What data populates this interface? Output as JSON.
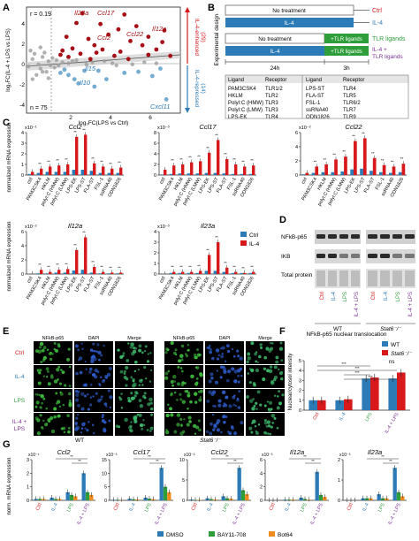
{
  "colors": {
    "red": "#d7191c",
    "darkred": "#a50f15",
    "blue": "#2c7bb6",
    "lightblue": "#74add1",
    "grey": "#9e9e9e",
    "green": "#2e9e3a",
    "orange": "#f08a1f",
    "purple": "#7b3294"
  },
  "panel_letters": [
    "A",
    "B",
    "C",
    "D",
    "E",
    "F",
    "G"
  ],
  "panelA": {
    "r_label": "r = 0.19",
    "n_label": "n = 75",
    "xlabel": "log₂FC(LPS vs Ctrl)",
    "ylabel": "log₂FC(IL-4 + LPS vs LPS)",
    "enhanced_label": "IL-4-enhanced",
    "enhanced_count": "(29)",
    "repressed_label": "IL-4-repressed",
    "repressed_count": "(14)",
    "genes": {
      "il23a": "Il23a",
      "ccl17": "Ccl17",
      "ccl2": "Ccl2",
      "ccl22": "Ccl22",
      "il12a": "Il12a",
      "il15": "Il15",
      "il10": "Il10",
      "cxcl11": "Cxcl11"
    },
    "xticks": [
      "2",
      "4",
      "6"
    ],
    "yticks": [
      "4",
      "2",
      "0",
      "-2",
      "-4"
    ],
    "chart_data": {
      "type": "scatter",
      "xlabel": "log₂FC(LPS vs Ctrl)",
      "ylabel": "log₂FC(IL-4 + LPS vs LPS)",
      "xlim": [
        -0.5,
        7.2
      ],
      "ylim": [
        -4.8,
        5.2
      ],
      "enhanced": [
        [
          2.3,
          4.6
        ],
        [
          4.4,
          4.5
        ],
        [
          2.0,
          3.7
        ],
        [
          3.2,
          3.6
        ],
        [
          4.1,
          3.1
        ],
        [
          5.0,
          3.4
        ],
        [
          6.4,
          3.0
        ],
        [
          3.6,
          2.6
        ],
        [
          5.6,
          2.4
        ],
        [
          2.6,
          2.2
        ],
        [
          1.5,
          2.4
        ],
        [
          4.7,
          2.0
        ],
        [
          2.9,
          1.6
        ],
        [
          5.3,
          1.6
        ],
        [
          1.8,
          1.3
        ],
        [
          3.3,
          1.2
        ],
        [
          4.2,
          1.0
        ],
        [
          6.0,
          1.2
        ],
        [
          2.2,
          0.8
        ],
        [
          1.2,
          0.7
        ],
        [
          5.6,
          0.7
        ],
        [
          3.9,
          0.6
        ],
        [
          1.6,
          0.5
        ],
        [
          2.7,
          0.3
        ],
        [
          4.6,
          0.3
        ],
        [
          6.7,
          0.6
        ],
        [
          6.3,
          1.9
        ],
        [
          1.3,
          1.1
        ],
        [
          3.0,
          0.9
        ]
      ],
      "repressed": [
        [
          2.4,
          -0.8
        ],
        [
          1.6,
          -1.2
        ],
        [
          3.5,
          -1.6
        ],
        [
          2.1,
          -2.0
        ],
        [
          4.4,
          -1.0
        ],
        [
          5.8,
          -1.3
        ],
        [
          1.4,
          -0.7
        ],
        [
          2.9,
          -2.3
        ],
        [
          5.1,
          -0.9
        ],
        [
          1.9,
          -1.6
        ],
        [
          3.1,
          -0.8
        ],
        [
          6.2,
          -0.6
        ],
        [
          1.2,
          -1.0
        ],
        [
          6.5,
          -3.5
        ]
      ],
      "neutral": [
        [
          -0.2,
          0.3
        ],
        [
          0.1,
          -0.2
        ],
        [
          0.3,
          0.5
        ],
        [
          -0.4,
          -0.4
        ],
        [
          0.6,
          0.1
        ],
        [
          0.2,
          -0.6
        ],
        [
          -0.1,
          0.8
        ],
        [
          0.5,
          -0.9
        ],
        [
          0.8,
          0.4
        ],
        [
          0.0,
          -1.2
        ],
        [
          -0.3,
          1.1
        ],
        [
          0.4,
          0.9
        ],
        [
          0.7,
          -0.3
        ],
        [
          1.0,
          0.2
        ],
        [
          0.9,
          -0.5
        ],
        [
          1.3,
          0.0
        ],
        [
          1.6,
          -0.1
        ],
        [
          2.0,
          0.2
        ],
        [
          2.5,
          -0.2
        ],
        [
          3.4,
          0.1
        ],
        [
          4.0,
          -0.3
        ],
        [
          4.8,
          -0.2
        ],
        [
          5.4,
          0.0
        ],
        [
          6.0,
          -0.1
        ],
        [
          0.2,
          1.4
        ],
        [
          -0.2,
          -1.6
        ],
        [
          0.6,
          -1.5
        ],
        [
          1.1,
          -0.3
        ],
        [
          1.8,
          0.1
        ],
        [
          2.8,
          0.0
        ],
        [
          3.8,
          -0.1
        ],
        [
          0.3,
          -0.9
        ]
      ]
    }
  },
  "panelB": {
    "title": "Experimental design",
    "no_treatment": "No treatment",
    "il4": "IL-4",
    "tlr_ligands": "+TLR ligands",
    "ctrl": "Ctrl",
    "out_il4": "IL-4",
    "out_tlr": "TLR ligands",
    "out_il4_tlr": "IL-4 +",
    "out_il4_tlr2": "TLR ligands",
    "t24": "24h",
    "t3": "3h",
    "table_header": [
      "Ligand",
      "Receptor",
      "Ligand",
      "Receptor"
    ],
    "table_rows": [
      [
        "PAM3CSK4",
        "TLR1/2",
        "LPS-ST",
        "TLR4"
      ],
      [
        "HKLM",
        "TLR2",
        "FLA-ST",
        "TLR5"
      ],
      [
        "PolyI:C (HMW)",
        "TLR3",
        "FSL-1",
        "TLR6/2"
      ],
      [
        "PolyI:C (LMW)",
        "TLR3",
        "ssRNA40",
        "TLR7"
      ],
      [
        "LPS-EK",
        "TLR4",
        "ODN1826",
        "TLR9"
      ]
    ]
  },
  "panelC": {
    "ylabel": "normalized mRNA expression",
    "legend_ctrl": "Ctrl",
    "legend_il4": "IL-4",
    "categories": [
      "ctrl",
      "PAM3CSK4",
      "HKLM",
      "polyI:C (HMW)",
      "polyI:C (LMW)",
      "LPS-EK",
      "LPS-ST",
      "FLA-ST",
      "FSL-1",
      "ssRNA40",
      "ODN1826"
    ],
    "charts": [
      {
        "gene": "Ccl2",
        "scale": "x10⁻¹",
        "ymax": "4",
        "ticks": [
          "0",
          "1",
          "2",
          "3",
          "4"
        ],
        "ctrl": [
          0.1,
          0.2,
          0.3,
          0.3,
          0.3,
          0.5,
          0.5,
          0.4,
          0.2,
          0.2,
          0.2
        ],
        "il4": [
          0.3,
          0.6,
          0.8,
          0.9,
          1.0,
          3.6,
          3.8,
          1.1,
          0.8,
          0.6,
          0.7
        ]
      },
      {
        "gene": "Ccl17",
        "scale": "x10⁻³",
        "ymax": "8",
        "ticks": [
          "0",
          "2",
          "4",
          "6",
          "8"
        ],
        "ctrl": [
          0.1,
          0.2,
          0.3,
          0.3,
          0.3,
          0.4,
          0.4,
          0.3,
          0.2,
          0.2,
          0.2
        ],
        "il4": [
          1.0,
          1.8,
          2.0,
          2.4,
          2.6,
          4.2,
          6.6,
          3.0,
          2.0,
          1.6,
          1.8
        ]
      },
      {
        "gene": "Ccl22",
        "scale": "x10⁻²",
        "ymax": "6",
        "ticks": [
          "0",
          "2",
          "4",
          "6"
        ],
        "ctrl": [
          0.1,
          0.3,
          0.4,
          0.4,
          0.5,
          0.8,
          0.9,
          0.6,
          0.4,
          0.3,
          0.4
        ],
        "il4": [
          0.3,
          1.2,
          1.5,
          2.2,
          2.6,
          4.8,
          5.2,
          2.4,
          1.4,
          1.2,
          1.6
        ]
      },
      {
        "gene": "Il12a",
        "scale": "x10⁻²",
        "ymax": "6",
        "ticks": [
          "0",
          "2",
          "4",
          "6"
        ],
        "ctrl": [
          0.0,
          0.1,
          0.1,
          0.2,
          0.2,
          0.5,
          0.6,
          0.2,
          0.1,
          0.1,
          0.1
        ],
        "il4": [
          0.0,
          0.6,
          0.3,
          0.6,
          0.7,
          3.4,
          5.2,
          1.0,
          0.3,
          0.2,
          0.2
        ]
      },
      {
        "gene": "Il23a",
        "scale": "x10⁻³",
        "ymax": "4",
        "ticks": [
          "0",
          "1",
          "2",
          "3",
          "4"
        ],
        "ctrl": [
          0.0,
          0.1,
          0.1,
          0.1,
          0.1,
          0.3,
          0.3,
          0.2,
          0.1,
          0.1,
          0.1
        ],
        "il4": [
          0.0,
          0.2,
          0.2,
          0.2,
          0.3,
          1.8,
          3.0,
          0.6,
          0.2,
          0.1,
          0.2
        ]
      }
    ]
  },
  "panelD": {
    "row_labels": [
      "NFkB-p65",
      "IKB",
      "Total protein"
    ],
    "lanes": [
      "Ctrl",
      "IL-4",
      "LPS",
      "IL-4 + LPS"
    ],
    "groups": [
      "WT",
      "Stat6⁻/⁻"
    ]
  },
  "panelE": {
    "col_labels": [
      "NFkB-p65",
      "DAPI",
      "Merge",
      "NFkB-p65",
      "DAPI",
      "Merge"
    ],
    "row_labels": [
      "Ctrl",
      "IL-4",
      "LPS",
      "IL-4 +",
      "LPS"
    ],
    "groups": [
      "WT",
      "Stat6⁻/⁻"
    ]
  },
  "panelF": {
    "title": "NFkB-p65 nuclear translocation",
    "ylabel": "Nuclear/cytosol intensity",
    "legend": [
      "WT",
      "Stat6⁻/⁻"
    ],
    "categories": [
      "Ctrl",
      "IL-4",
      "LPS",
      "IL-4 + LPS"
    ],
    "yticks": [
      "0",
      "1",
      "2",
      "3",
      "4",
      "5"
    ],
    "ns": "ns",
    "chart_data": {
      "type": "bar",
      "categories": [
        "Ctrl",
        "IL-4",
        "LPS",
        "IL-4 + LPS"
      ],
      "series": [
        {
          "name": "WT",
          "values": [
            1.0,
            1.0,
            3.2,
            3.2
          ]
        },
        {
          "name": "Stat6⁻/⁻",
          "values": [
            1.0,
            1.1,
            3.3,
            3.8
          ]
        }
      ],
      "ylim": [
        0,
        5
      ]
    }
  },
  "panelG": {
    "ylabel": "norm. mRNA expression",
    "categories": [
      "Ctrl",
      "IL-4",
      "LPS",
      "IL-4 + LPS"
    ],
    "legend": [
      "DMSO",
      "BAY11-708",
      "Bot64"
    ],
    "charts": [
      {
        "gene": "Ccl2",
        "scale": "x10⁻¹",
        "ticks": [
          "0",
          "1",
          "2",
          "3"
        ],
        "ymax": 3,
        "dmso": [
          0.1,
          0.2,
          0.6,
          2.0
        ],
        "bay": [
          0.1,
          0.1,
          0.4,
          0.6
        ],
        "bot": [
          0.1,
          0.1,
          0.3,
          0.4
        ]
      },
      {
        "gene": "Ccl17",
        "scale": "x10⁻³",
        "ticks": [
          "0",
          "5",
          "10",
          "15"
        ],
        "ymax": 15,
        "dmso": [
          0.2,
          0.6,
          1.0,
          12.0
        ],
        "bay": [
          0.2,
          0.4,
          0.6,
          5.0
        ],
        "bot": [
          0.1,
          0.3,
          0.4,
          3.0
        ]
      },
      {
        "gene": "Ccl22",
        "scale": "x10⁻²",
        "ticks": [
          "0",
          "5",
          "10"
        ],
        "ymax": 10,
        "dmso": [
          0.2,
          0.5,
          1.0,
          8.0
        ],
        "bay": [
          0.1,
          0.3,
          0.5,
          2.5
        ],
        "bot": [
          0.1,
          0.2,
          0.4,
          1.5
        ]
      },
      {
        "gene": "Il12a",
        "scale": "x10⁻³",
        "ticks": [
          "0",
          "2",
          "4",
          "6"
        ],
        "ymax": 6,
        "dmso": [
          0.0,
          0.1,
          0.4,
          4.2
        ],
        "bay": [
          0.0,
          0.1,
          0.2,
          0.8
        ],
        "bot": [
          0.0,
          0.1,
          0.1,
          0.5
        ]
      },
      {
        "gene": "Il23a",
        "scale": "x10⁻³",
        "ticks": [
          "0",
          "1",
          "2"
        ],
        "ymax": 2,
        "dmso": [
          0.0,
          0.1,
          0.3,
          1.6
        ],
        "bay": [
          0.0,
          0.1,
          0.1,
          0.4
        ],
        "bot": [
          0.0,
          0.1,
          0.1,
          0.2
        ]
      }
    ]
  }
}
